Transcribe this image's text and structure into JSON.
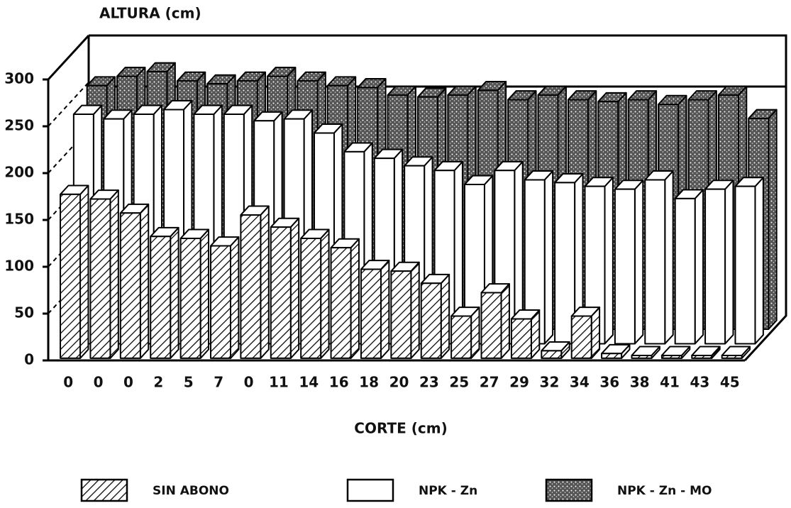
{
  "chart_data": {
    "type": "bar3d",
    "y_label": "ALTURA (cm)",
    "x_label": "CORTE (cm)",
    "categories": [
      "0",
      "0",
      "0",
      "2",
      "5",
      "7",
      "0",
      "11",
      "14",
      "16",
      "18",
      "20",
      "23",
      "25",
      "27",
      "29",
      "32",
      "34",
      "36",
      "38",
      "41",
      "43",
      "45"
    ],
    "series": [
      {
        "name": "SIN ABONO",
        "values": [
          175,
          170,
          155,
          130,
          128,
          120,
          153,
          140,
          128,
          118,
          95,
          93,
          80,
          45,
          70,
          42,
          8,
          45,
          5,
          3,
          3,
          3,
          3
        ]
      },
      {
        "name": "NPK - Zn",
        "values": [
          245,
          240,
          245,
          250,
          245,
          245,
          238,
          240,
          225,
          205,
          198,
          190,
          185,
          170,
          185,
          175,
          172,
          168,
          165,
          175,
          155,
          165,
          168
        ]
      },
      {
        "name": "NPK - Zn - MO",
        "values": [
          260,
          270,
          275,
          265,
          262,
          265,
          270,
          265,
          260,
          258,
          250,
          248,
          250,
          255,
          245,
          250,
          245,
          243,
          245,
          240,
          245,
          250,
          225
        ]
      }
    ],
    "ylim": [
      0,
      300
    ],
    "yticks": [
      0,
      50,
      100,
      150,
      200,
      250,
      300
    ]
  }
}
